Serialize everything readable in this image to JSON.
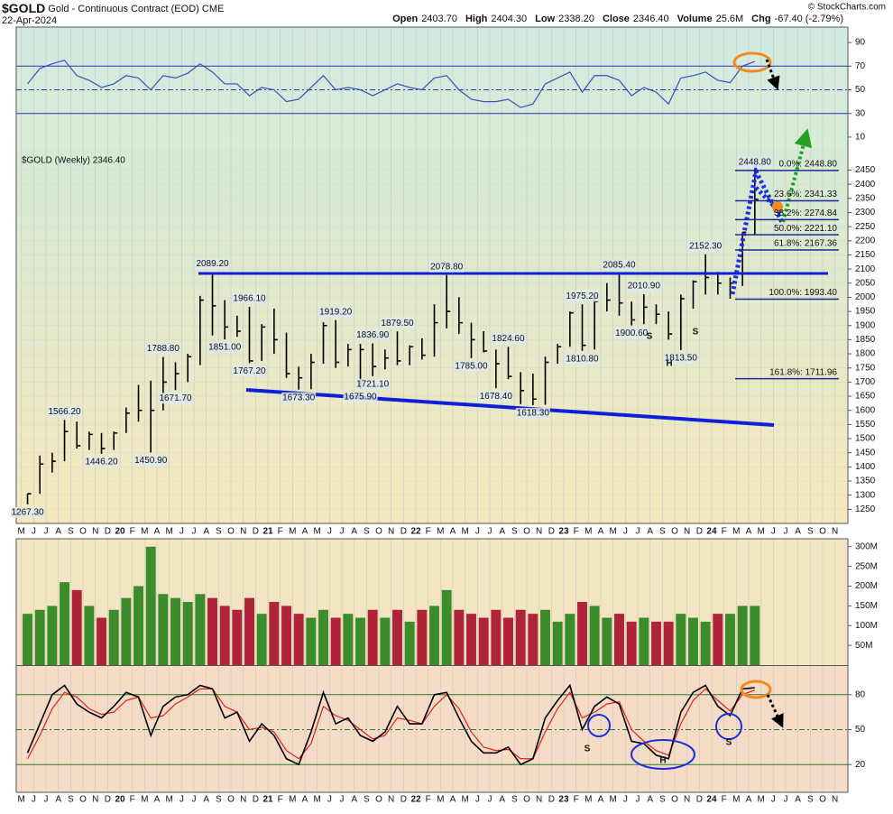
{
  "header": {
    "symbol": "$GOLD",
    "name": "Gold - Continuous Contract (EOD)",
    "exchange": "CME",
    "date": "22-Apr-2024",
    "credit": "© StockCharts.com",
    "quote": [
      {
        "label": "Open",
        "text": "2403.70"
      },
      {
        "label": "High",
        "text": "2404.30"
      },
      {
        "label": "Low",
        "text": "2338.20"
      },
      {
        "label": "Close",
        "text": "2346.40"
      },
      {
        "label": "Volume",
        "text": "25.6M"
      },
      {
        "label": "Chg",
        "text": "-67.40 (-2.79%)"
      }
    ]
  },
  "chart_data": {
    "type": "stock",
    "legend": "$GOLD (Weekly) 2346.40",
    "x": [
      "2019-05",
      "2019-06",
      "2019-07",
      "2019-08",
      "2019-09",
      "2019-10",
      "2019-11",
      "2019-12",
      "2020-01",
      "2020-02",
      "2020-03",
      "2020-04",
      "2020-05",
      "2020-06",
      "2020-07",
      "2020-08",
      "2020-09",
      "2020-10",
      "2020-11",
      "2020-12",
      "2021-01",
      "2021-02",
      "2021-03",
      "2021-04",
      "2021-05",
      "2021-06",
      "2021-07",
      "2021-08",
      "2021-09",
      "2021-10",
      "2021-11",
      "2021-12",
      "2022-01",
      "2022-02",
      "2022-03",
      "2022-04",
      "2022-05",
      "2022-06",
      "2022-07",
      "2022-08",
      "2022-09",
      "2022-10",
      "2022-11",
      "2022-12",
      "2023-01",
      "2023-02",
      "2023-03",
      "2023-04",
      "2023-05",
      "2023-06",
      "2023-07",
      "2023-08",
      "2023-09",
      "2023-10",
      "2023-11",
      "2023-12",
      "2024-01",
      "2024-02",
      "2024-03",
      "2024-04"
    ],
    "xlim": [
      "2019-05",
      "2024-12"
    ],
    "xticks": [
      {
        "value": "2019-05",
        "label": "M"
      },
      {
        "value": "2019-06",
        "label": "J"
      },
      {
        "value": "2019-07",
        "label": "J"
      },
      {
        "value": "2019-08",
        "label": "A"
      },
      {
        "value": "2019-09",
        "label": "S"
      },
      {
        "value": "2019-10",
        "label": "O"
      },
      {
        "value": "2019-11",
        "label": "N"
      },
      {
        "value": "2019-12",
        "label": "D"
      },
      {
        "value": "2020-01",
        "label": "20"
      },
      {
        "value": "2020-02",
        "label": "F"
      },
      {
        "value": "2020-03",
        "label": "M"
      },
      {
        "value": "2020-04",
        "label": "A"
      },
      {
        "value": "2020-05",
        "label": "M"
      },
      {
        "value": "2020-06",
        "label": "J"
      },
      {
        "value": "2020-07",
        "label": "J"
      },
      {
        "value": "2020-08",
        "label": "A"
      },
      {
        "value": "2020-09",
        "label": "S"
      },
      {
        "value": "2020-10",
        "label": "O"
      },
      {
        "value": "2020-11",
        "label": "N"
      },
      {
        "value": "2020-12",
        "label": "D"
      },
      {
        "value": "2021-01",
        "label": "21"
      },
      {
        "value": "2021-02",
        "label": "F"
      },
      {
        "value": "2021-03",
        "label": "M"
      },
      {
        "value": "2021-04",
        "label": "A"
      },
      {
        "value": "2021-05",
        "label": "M"
      },
      {
        "value": "2021-06",
        "label": "J"
      },
      {
        "value": "2021-07",
        "label": "J"
      },
      {
        "value": "2021-08",
        "label": "A"
      },
      {
        "value": "2021-09",
        "label": "S"
      },
      {
        "value": "2021-10",
        "label": "O"
      },
      {
        "value": "2021-11",
        "label": "N"
      },
      {
        "value": "2021-12",
        "label": "D"
      },
      {
        "value": "2022-01",
        "label": "22"
      },
      {
        "value": "2022-02",
        "label": "F"
      },
      {
        "value": "2022-03",
        "label": "M"
      },
      {
        "value": "2022-04",
        "label": "A"
      },
      {
        "value": "2022-05",
        "label": "M"
      },
      {
        "value": "2022-06",
        "label": "J"
      },
      {
        "value": "2022-07",
        "label": "J"
      },
      {
        "value": "2022-08",
        "label": "A"
      },
      {
        "value": "2022-09",
        "label": "S"
      },
      {
        "value": "2022-10",
        "label": "O"
      },
      {
        "value": "2022-11",
        "label": "N"
      },
      {
        "value": "2022-12",
        "label": "D"
      },
      {
        "value": "2023-01",
        "label": "23"
      },
      {
        "value": "2023-02",
        "label": "F"
      },
      {
        "value": "2023-03",
        "label": "M"
      },
      {
        "value": "2023-04",
        "label": "A"
      },
      {
        "value": "2023-05",
        "label": "M"
      },
      {
        "value": "2023-06",
        "label": "J"
      },
      {
        "value": "2023-07",
        "label": "J"
      },
      {
        "value": "2023-08",
        "label": "A"
      },
      {
        "value": "2023-09",
        "label": "S"
      },
      {
        "value": "2023-10",
        "label": "O"
      },
      {
        "value": "2023-11",
        "label": "N"
      },
      {
        "value": "2023-12",
        "label": "D"
      },
      {
        "value": "2024-01",
        "label": "24"
      },
      {
        "value": "2024-02",
        "label": "F"
      },
      {
        "value": "2024-03",
        "label": "M"
      },
      {
        "value": "2024-04",
        "label": "A"
      },
      {
        "value": "2024-05",
        "label": "M"
      },
      {
        "value": "2024-06",
        "label": "J"
      },
      {
        "value": "2024-07",
        "label": "J"
      },
      {
        "value": "2024-08",
        "label": "A"
      },
      {
        "value": "2024-09",
        "label": "S"
      },
      {
        "value": "2024-10",
        "label": "O"
      },
      {
        "value": "2024-11",
        "label": "N"
      }
    ],
    "price": {
      "color": "#000000",
      "high": [
        1305,
        1440,
        1450,
        1566.2,
        1560,
        1525,
        1520,
        1525,
        1610,
        1690,
        1705,
        1788.8,
        1770,
        1800,
        2005,
        2089.2,
        1990,
        1935,
        1966.1,
        1905,
        1960,
        1875,
        1755,
        1800,
        1912,
        1919.2,
        1835,
        1835,
        1836.9,
        1815,
        1879.5,
        1830,
        1855,
        1975,
        2078.8,
        2000,
        1910,
        1880,
        1815,
        1824.6,
        1735,
        1730,
        1790,
        1835,
        1950,
        1975.2,
        2010,
        2050,
        2085.4,
        1985,
        2010.9,
        1975,
        1950,
        2010,
        2060,
        2152.3,
        2090,
        2070,
        2230,
        2448.8
      ],
      "low": [
        1267.3,
        1305,
        1380,
        1420,
        1465,
        1460,
        1446.2,
        1460,
        1520,
        1560,
        1450.9,
        1600,
        1671.7,
        1700,
        1760,
        1865,
        1851,
        1860,
        1767.2,
        1775,
        1800,
        1715,
        1673.3,
        1675,
        1765,
        1750,
        1755,
        1675.9,
        1721.1,
        1745,
        1760,
        1760,
        1780,
        1790,
        1890,
        1870,
        1785,
        1805,
        1678.4,
        1710,
        1622,
        1618.3,
        1620,
        1765,
        1825,
        1810.8,
        1815,
        1950,
        1935,
        1900.6,
        1905,
        1905,
        1850,
        1813.5,
        1960,
        2010,
        2010,
        1995,
        2040,
        2220
      ],
      "close": [
        1305,
        1410,
        1420,
        1525,
        1475,
        1515,
        1465,
        1520,
        1590,
        1600,
        1600,
        1700,
        1730,
        1790,
        1990,
        1970,
        1895,
        1880,
        1775,
        1895,
        1850,
        1730,
        1715,
        1770,
        1900,
        1770,
        1815,
        1815,
        1755,
        1785,
        1775,
        1825,
        1795,
        1910,
        1950,
        1910,
        1850,
        1810,
        1765,
        1720,
        1670,
        1640,
        1770,
        1825,
        1945,
        1830,
        1985,
        1990,
        1980,
        1920,
        1965,
        1940,
        1870,
        1995,
        2055,
        2070,
        2050,
        2050,
        2230,
        2346.4
      ],
      "ylim": [
        1200,
        2525
      ],
      "yticks": [
        1250,
        1300,
        1350,
        1400,
        1450,
        1500,
        1550,
        1600,
        1650,
        1700,
        1750,
        1800,
        1850,
        1900,
        1950,
        2000,
        2050,
        2100,
        2150,
        2200,
        2250,
        2300,
        2350,
        2400,
        2450
      ],
      "labels": [
        {
          "label": "1267.30",
          "x": "2019-05",
          "value": 1267.3
        },
        {
          "label": "1566.20",
          "x": "2019-08",
          "value": 1566.2
        },
        {
          "label": "1446.20",
          "x": "2019-11",
          "value": 1446.2
        },
        {
          "label": "1450.90",
          "x": "2020-03",
          "value": 1450.9
        },
        {
          "label": "1788.80",
          "x": "2020-04",
          "value": 1788.8
        },
        {
          "label": "1671.70",
          "x": "2020-05",
          "value": 1671.7
        },
        {
          "label": "2089.20",
          "x": "2020-08",
          "value": 2089.2
        },
        {
          "label": "1851.00",
          "x": "2020-09",
          "value": 1851
        },
        {
          "label": "1966.10",
          "x": "2020-11",
          "value": 1966.1
        },
        {
          "label": "1767.20",
          "x": "2020-11",
          "value": 1767.2
        },
        {
          "label": "1673.30",
          "x": "2021-03",
          "value": 1673.3
        },
        {
          "label": "1919.20",
          "x": "2021-06",
          "value": 1919.2
        },
        {
          "label": "1675.90",
          "x": "2021-08",
          "value": 1675.9
        },
        {
          "label": "1836.90",
          "x": "2021-09",
          "value": 1836.9
        },
        {
          "label": "1721.10",
          "x": "2021-09",
          "value": 1721.1
        },
        {
          "label": "1879.50",
          "x": "2021-11",
          "value": 1879.5
        },
        {
          "label": "2078.80",
          "x": "2022-03",
          "value": 2078.8
        },
        {
          "label": "1785.00",
          "x": "2022-05",
          "value": 1785
        },
        {
          "label": "1678.40",
          "x": "2022-07",
          "value": 1678.4
        },
        {
          "label": "1824.60",
          "x": "2022-08",
          "value": 1824.6
        },
        {
          "label": "1618.30",
          "x": "2022-10",
          "value": 1618.3
        },
        {
          "label": "1975.20",
          "x": "2023-02",
          "value": 1975.2
        },
        {
          "label": "1810.80",
          "x": "2023-02",
          "value": 1810.8
        },
        {
          "label": "2085.40",
          "x": "2023-05",
          "value": 2085.4
        },
        {
          "label": "1900.60",
          "x": "2023-06",
          "value": 1900.6
        },
        {
          "label": "2010.90",
          "x": "2023-07",
          "value": 2010.9
        },
        {
          "label": "1813.50",
          "x": "2023-10",
          "value": 1813.5
        },
        {
          "label": "2152.30",
          "x": "2023-12",
          "value": 2152.3
        },
        {
          "label": "2448.80",
          "x": "2024-04",
          "value": 2448.8
        }
      ],
      "fib": [
        {
          "label": "0.0%: 2448.80",
          "value": 2448.8
        },
        {
          "label": "23.6%: 2341.33",
          "value": 2341.33
        },
        {
          "label": "38.2%: 2274.84",
          "value": 2274.84
        },
        {
          "label": "50.0%: 2221.10",
          "value": 2221.1
        },
        {
          "label": "61.8%: 2167.36",
          "value": 2167.36
        },
        {
          "label": "100.0%: 1993.40",
          "value": 1993.4
        },
        {
          "label": "161.8%: 1711.96",
          "value": 1711.96
        }
      ],
      "pattern": [
        "S",
        "H",
        "S"
      ]
    },
    "rsi": {
      "color": "#3a4fc0",
      "values": [
        55,
        68,
        72,
        75,
        62,
        58,
        52,
        55,
        62,
        60,
        50,
        62,
        60,
        64,
        72,
        65,
        55,
        55,
        45,
        52,
        50,
        40,
        42,
        52,
        62,
        50,
        52,
        50,
        45,
        50,
        55,
        52,
        50,
        60,
        62,
        50,
        42,
        40,
        40,
        42,
        35,
        38,
        55,
        60,
        65,
        48,
        62,
        62,
        58,
        45,
        52,
        48,
        38,
        60,
        62,
        65,
        58,
        56,
        70,
        74
      ],
      "ylim": [
        0,
        100
      ],
      "yticks": [
        90,
        70,
        50,
        30,
        10
      ],
      "lines": [
        70,
        50,
        30
      ]
    },
    "volume": {
      "up_color": "#3c8c2c",
      "down_color": "#b0243a",
      "values": [
        130000000,
        140000000,
        150000000,
        210000000,
        190000000,
        150000000,
        120000000,
        140000000,
        170000000,
        200000000,
        300000000,
        180000000,
        170000000,
        160000000,
        180000000,
        170000000,
        150000000,
        140000000,
        170000000,
        130000000,
        160000000,
        150000000,
        130000000,
        120000000,
        140000000,
        120000000,
        130000000,
        120000000,
        140000000,
        120000000,
        140000000,
        110000000,
        140000000,
        150000000,
        190000000,
        140000000,
        130000000,
        120000000,
        140000000,
        120000000,
        140000000,
        130000000,
        140000000,
        110000000,
        130000000,
        160000000,
        150000000,
        120000000,
        130000000,
        110000000,
        120000000,
        110000000,
        110000000,
        130000000,
        120000000,
        110000000,
        130000000,
        130000000,
        150000000,
        150000000
      ],
      "ylim": [
        0,
        320000000
      ],
      "yticks": [
        {
          "value": 50000000,
          "label": "50M"
        },
        {
          "value": 100000000,
          "label": "100M"
        },
        {
          "value": 150000000,
          "label": "150M"
        },
        {
          "value": 200000000,
          "label": "200M"
        },
        {
          "value": 250000000,
          "label": "250M"
        },
        {
          "value": 300000000,
          "label": "300M"
        }
      ]
    },
    "stoch": {
      "k_color": "#000000",
      "d_color": "#e0201a",
      "k": [
        30,
        55,
        80,
        88,
        72,
        65,
        60,
        70,
        82,
        78,
        45,
        70,
        78,
        80,
        88,
        85,
        60,
        65,
        40,
        55,
        45,
        25,
        20,
        48,
        82,
        55,
        60,
        45,
        40,
        48,
        70,
        55,
        55,
        80,
        82,
        60,
        40,
        30,
        30,
        35,
        20,
        25,
        60,
        75,
        88,
        50,
        70,
        78,
        72,
        40,
        38,
        28,
        25,
        65,
        82,
        88,
        70,
        62,
        85,
        86
      ],
      "d": [
        25,
        45,
        68,
        82,
        78,
        68,
        63,
        65,
        75,
        78,
        60,
        62,
        72,
        78,
        85,
        85,
        70,
        65,
        50,
        52,
        48,
        32,
        25,
        38,
        70,
        62,
        58,
        50,
        42,
        45,
        60,
        58,
        55,
        70,
        80,
        68,
        48,
        35,
        32,
        33,
        25,
        25,
        48,
        68,
        82,
        60,
        65,
        72,
        74,
        50,
        40,
        32,
        28,
        55,
        75,
        85,
        75,
        66,
        80,
        84
      ],
      "ylim": [
        0,
        100
      ],
      "yticks": [
        80,
        50,
        20
      ],
      "lines": [
        80,
        50,
        20
      ],
      "pattern": [
        "S",
        "H",
        "S"
      ]
    }
  }
}
